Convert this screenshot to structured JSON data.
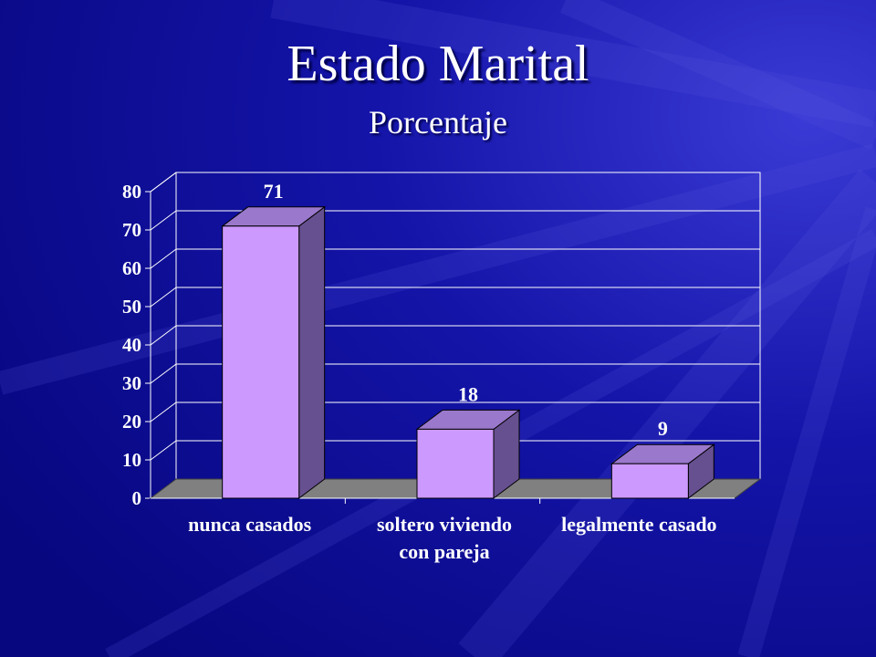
{
  "slide": {
    "title": "Estado Marital",
    "subtitle": "Porcentaje"
  },
  "colors": {
    "background": "#0a0a8e",
    "bar_front": "#cc99ff",
    "bar_top": "#9a78cc",
    "bar_side": "#665090",
    "floor": "#808080",
    "text": "#ffffff",
    "grid": "#ffffff"
  },
  "chart_data": {
    "type": "bar",
    "title": "Estado Marital",
    "subtitle": "Porcentaje",
    "categories": [
      [
        "nunca casados"
      ],
      [
        "soltero viviendo",
        "con pareja"
      ],
      [
        "legalmente casado"
      ]
    ],
    "values": [
      71,
      18,
      9
    ],
    "data_labels": [
      "71",
      "18",
      "9"
    ],
    "yticks": [
      "0",
      "10",
      "20",
      "30",
      "40",
      "50",
      "60",
      "70",
      "80"
    ],
    "ylim": [
      0,
      80
    ],
    "xlabel": "",
    "ylabel": "",
    "grid": true,
    "legend": "none",
    "style": "3d-column"
  }
}
